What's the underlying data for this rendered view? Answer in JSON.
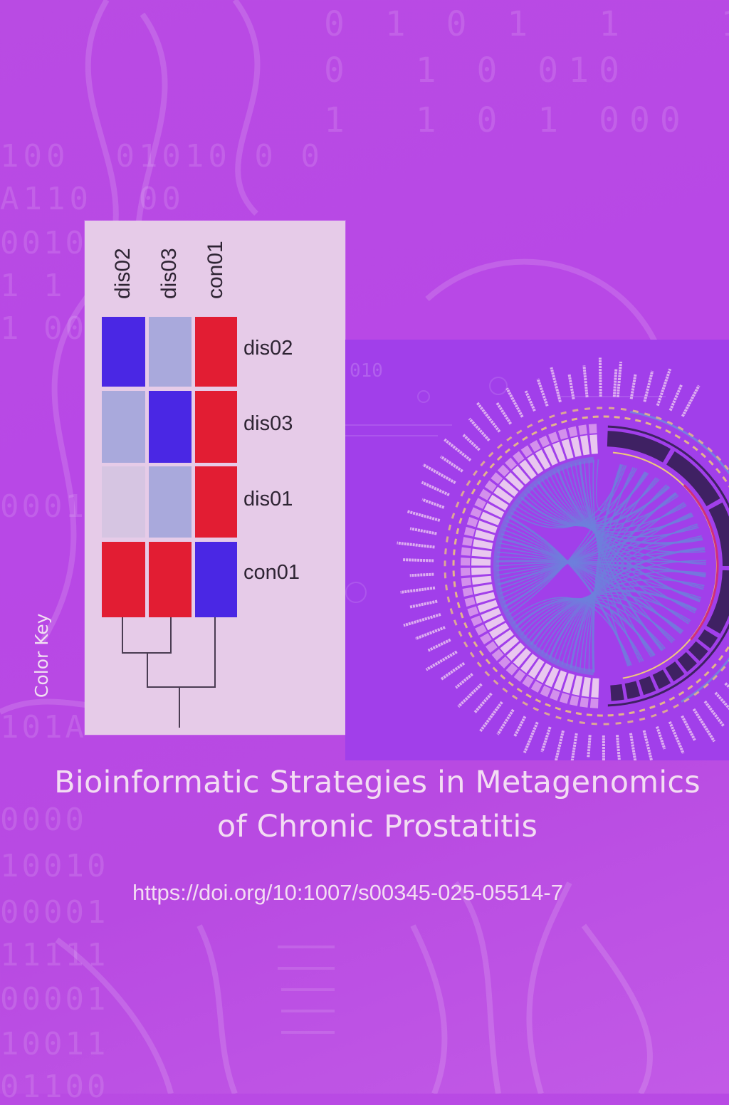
{
  "cover": {
    "title_line1": "Bioinformatic Strategies in Metagenomics",
    "title_line2": "of Chronic Prostatitis",
    "doi": "https://doi.org/10:1007/s00345-025-05514-7",
    "color_key_label": "Color Key",
    "background_color": "#b94be3",
    "title_color": "#f3dcf3"
  },
  "background_binary": [
    "0 1 0 1  1   1",
    "0  1 0 010",
    "1  1 0 1 000   1",
    "100  01010 0 0",
    "A110  00",
    "0010",
    "1 1 0",
    "1 00",
    "0001",
    "101A",
    "0000",
    "10010",
    "00001",
    "11111",
    "00001",
    "10011",
    "01100"
  ],
  "chart_data": [
    {
      "type": "heatmap",
      "title": "",
      "column_labels": [
        "dis02",
        "dis03",
        "con01"
      ],
      "row_labels": [
        "dis02",
        "dis03",
        "dis01",
        "con01"
      ],
      "cell_colors": [
        [
          "#4a27e4",
          "#a9a9dc",
          "#e21d33"
        ],
        [
          "#a9a9dc",
          "#4a27e4",
          "#e21d33"
        ],
        [
          "#d6c5e2",
          "#a9a9dc",
          "#e21d33"
        ],
        [
          "#e21d33",
          "#e21d33",
          "#4a27e4"
        ]
      ],
      "relative_values": [
        [
          -1.0,
          -0.4,
          1.0
        ],
        [
          -0.4,
          -1.0,
          1.0
        ],
        [
          -0.1,
          -0.4,
          1.0
        ],
        [
          1.0,
          1.0,
          -1.0
        ]
      ],
      "color_scale": {
        "low": "#4a27e4",
        "mid": "#d6c5e2",
        "high": "#e21d33"
      },
      "legend_label": "Color Key",
      "dendrogram": "((dis02, dis03), con01)"
    },
    {
      "type": "chord",
      "title": "",
      "segment_labels": "illegible",
      "ring_colors": {
        "chords": "#6f7fdc",
        "left_ring": "#f1d6f0",
        "right_ring": "#3f2163",
        "dashes": "#f0c97a",
        "accent_arc": "#d02f7a"
      }
    }
  ]
}
